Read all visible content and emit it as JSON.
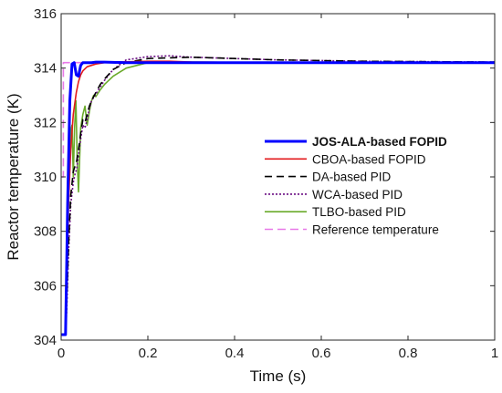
{
  "chart_data": {
    "type": "line",
    "xlabel": "Time (s)",
    "ylabel": "Reactor temperature (K)",
    "xlim": [
      0,
      1
    ],
    "ylim": [
      304,
      316
    ],
    "x_ticks": [
      0,
      0.2,
      0.4,
      0.6,
      0.8,
      1
    ],
    "x_tick_labels": [
      "0",
      "0.2",
      "0.4",
      "0.6",
      "0.8",
      "1"
    ],
    "y_ticks": [
      304,
      306,
      308,
      310,
      312,
      314,
      316
    ],
    "y_tick_labels": [
      "304",
      "306",
      "308",
      "310",
      "312",
      "314",
      "316"
    ],
    "grid": false,
    "legend_position": "right",
    "series": [
      {
        "name": "JOS-ALA-based FOPID",
        "color": "#0000ff",
        "dash": "solid",
        "bold": true,
        "x": [
          0,
          0.01,
          0.012,
          0.015,
          0.02,
          0.025,
          0.03,
          0.035,
          0.04,
          0.045,
          0.05,
          0.06,
          0.07,
          0.08,
          0.1,
          0.15,
          0.2,
          0.3,
          0.5,
          1
        ],
        "y": [
          304.2,
          304.2,
          306,
          309,
          312.8,
          314.15,
          314.2,
          313.75,
          313.7,
          314.1,
          314.2,
          314.2,
          314.2,
          314.22,
          314.22,
          314.2,
          314.2,
          314.2,
          314.2,
          314.2
        ]
      },
      {
        "name": "CBOA-based FOPID",
        "color": "#e31a1c",
        "dash": "solid",
        "x": [
          0,
          0.01,
          0.013,
          0.017,
          0.022,
          0.028,
          0.035,
          0.04,
          0.045,
          0.05,
          0.06,
          0.08,
          0.1,
          0.12,
          0.15,
          0.2,
          0.25,
          0.3,
          0.5,
          1
        ],
        "y": [
          304.2,
          304.2,
          306.5,
          309,
          311,
          312.3,
          313.1,
          313.5,
          313.75,
          313.9,
          314.05,
          314.15,
          314.2,
          314.22,
          314.23,
          314.25,
          314.25,
          314.22,
          314.2,
          314.2
        ]
      },
      {
        "name": "DA-based PID",
        "color": "#000000",
        "dash": "8,5",
        "x": [
          0,
          0.01,
          0.013,
          0.017,
          0.022,
          0.028,
          0.032,
          0.036,
          0.04,
          0.045,
          0.05,
          0.055,
          0.06,
          0.065,
          0.07,
          0.08,
          0.09,
          0.1,
          0.12,
          0.15,
          0.2,
          0.3,
          0.4,
          0.5,
          0.7,
          1
        ],
        "y": [
          304.2,
          304.2,
          305.5,
          307.5,
          309.3,
          310.2,
          310.4,
          310.6,
          311,
          311.6,
          312.1,
          312,
          312.3,
          312.6,
          312.8,
          313.1,
          313.4,
          313.6,
          313.95,
          314.2,
          314.35,
          314.4,
          314.35,
          314.3,
          314.25,
          314.22
        ]
      },
      {
        "name": "WCA-based PID",
        "color": "#6a0d83",
        "dash": "2,2",
        "x": [
          0,
          0.01,
          0.013,
          0.017,
          0.022,
          0.028,
          0.032,
          0.036,
          0.04,
          0.045,
          0.05,
          0.055,
          0.06,
          0.065,
          0.07,
          0.08,
          0.09,
          0.1,
          0.12,
          0.15,
          0.2,
          0.25,
          0.3,
          0.4,
          0.5,
          0.7,
          1
        ],
        "y": [
          304.2,
          304.2,
          305.2,
          307.2,
          309,
          309.8,
          310.1,
          310.3,
          310.8,
          311.4,
          311.9,
          311.8,
          312.1,
          312.5,
          312.8,
          313.05,
          313.3,
          313.55,
          313.95,
          314.3,
          314.42,
          314.45,
          314.4,
          314.35,
          314.3,
          314.25,
          314.22
        ]
      },
      {
        "name": "TLBO-based PID",
        "color": "#6aaa2a",
        "dash": "solid",
        "x": [
          0,
          0.01,
          0.013,
          0.016,
          0.019,
          0.022,
          0.025,
          0.028,
          0.031,
          0.034,
          0.037,
          0.04,
          0.045,
          0.05,
          0.055,
          0.06,
          0.065,
          0.07,
          0.075,
          0.08,
          0.09,
          0.1,
          0.12,
          0.15,
          0.2,
          0.25,
          0.3,
          0.5,
          1
        ],
        "y": [
          304.2,
          304.2,
          305.8,
          308.5,
          310.8,
          311.7,
          311.9,
          310,
          311.8,
          312.8,
          310.6,
          309.45,
          311.8,
          312.3,
          312.6,
          311.9,
          312.4,
          312.8,
          313,
          312.95,
          313.2,
          313.4,
          313.7,
          314,
          314.2,
          314.22,
          314.22,
          314.2,
          314.2
        ]
      },
      {
        "name": "Reference temperature",
        "color": "#e879e8",
        "dash": "9,5",
        "x": [
          0,
          0.005,
          0.0051,
          1
        ],
        "y": [
          310,
          310,
          314.2,
          314.2
        ]
      }
    ]
  }
}
